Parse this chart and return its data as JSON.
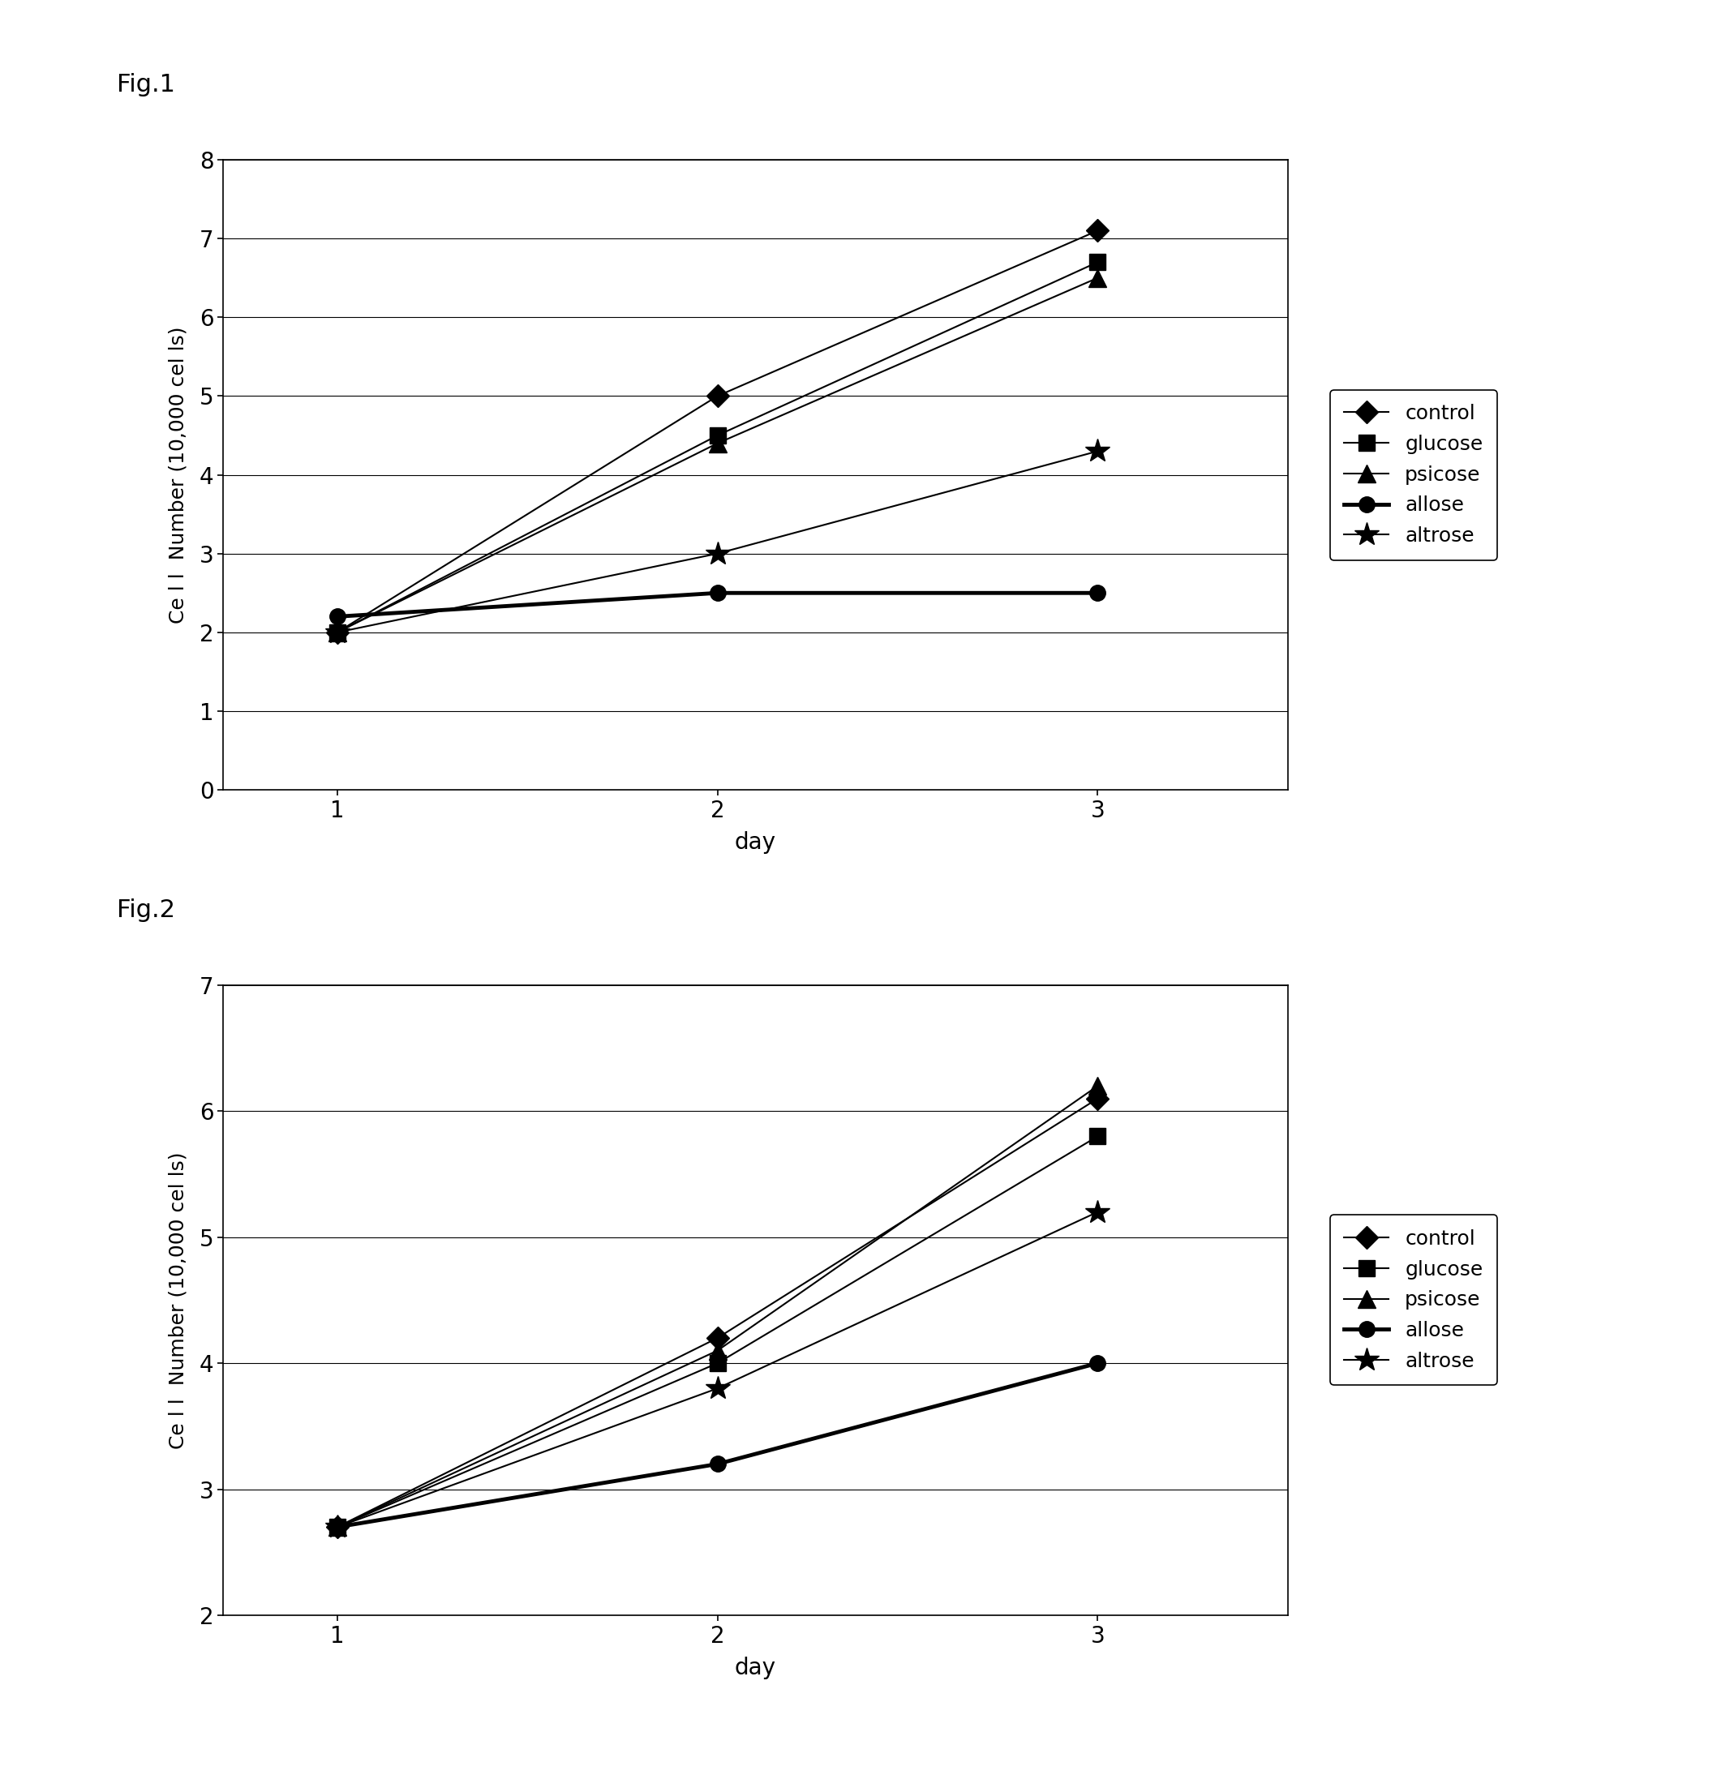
{
  "fig1": {
    "title": "Fig.1",
    "days": [
      1,
      2,
      3
    ],
    "series": [
      {
        "label": "control",
        "values": [
          2.0,
          5.0,
          7.1
        ],
        "marker": "D",
        "lw": 1.5,
        "thick": false
      },
      {
        "label": "glucose",
        "values": [
          2.0,
          4.5,
          6.7
        ],
        "marker": "s",
        "lw": 1.5,
        "thick": false
      },
      {
        "label": "psicose",
        "values": [
          2.0,
          4.4,
          6.5
        ],
        "marker": "^",
        "lw": 1.5,
        "thick": false
      },
      {
        "label": "allose",
        "values": [
          2.2,
          2.5,
          2.5
        ],
        "marker": "o",
        "lw": 3.5,
        "thick": true
      },
      {
        "label": "altrose",
        "values": [
          2.0,
          3.0,
          4.3
        ],
        "marker": "*",
        "lw": 1.5,
        "thick": false
      }
    ],
    "ylabel": "Ce l l  Number (10,000 cel ls)",
    "xlabel": "day",
    "ylim": [
      0,
      8
    ],
    "yticks": [
      0,
      1,
      2,
      3,
      4,
      5,
      6,
      7,
      8
    ],
    "xlim": [
      0.7,
      3.5
    ],
    "xticks": [
      1,
      2,
      3
    ]
  },
  "fig2": {
    "title": "Fig.2",
    "days": [
      1,
      2,
      3
    ],
    "series": [
      {
        "label": "control",
        "values": [
          2.7,
          4.2,
          6.1
        ],
        "marker": "D",
        "lw": 1.5,
        "thick": false
      },
      {
        "label": "glucose",
        "values": [
          2.7,
          4.0,
          5.8
        ],
        "marker": "s",
        "lw": 1.5,
        "thick": false
      },
      {
        "label": "psicose",
        "values": [
          2.7,
          4.1,
          6.2
        ],
        "marker": "^",
        "lw": 1.5,
        "thick": false
      },
      {
        "label": "allose",
        "values": [
          2.7,
          3.2,
          4.0
        ],
        "marker": "o",
        "lw": 3.5,
        "thick": true
      },
      {
        "label": "altrose",
        "values": [
          2.7,
          3.8,
          5.2
        ],
        "marker": "*",
        "lw": 1.5,
        "thick": false
      }
    ],
    "ylabel": "Ce l l  Number (10,000 cel ls)",
    "xlabel": "day",
    "ylim": [
      2,
      7
    ],
    "yticks": [
      2,
      3,
      4,
      5,
      6,
      7
    ],
    "xlim": [
      0.7,
      3.5
    ],
    "xticks": [
      1,
      2,
      3
    ]
  },
  "color": "#000000",
  "bg_color": "#ffffff",
  "marker_sizes": {
    "D": 14,
    "s": 15,
    "^": 16,
    "o": 14,
    "*": 22
  },
  "fig1_label": "Fig.1",
  "fig2_label": "Fig.2",
  "title_fontsize": 22,
  "tick_fontsize": 20,
  "label_fontsize": 20,
  "ylabel_fontsize": 18,
  "legend_fontsize": 18
}
